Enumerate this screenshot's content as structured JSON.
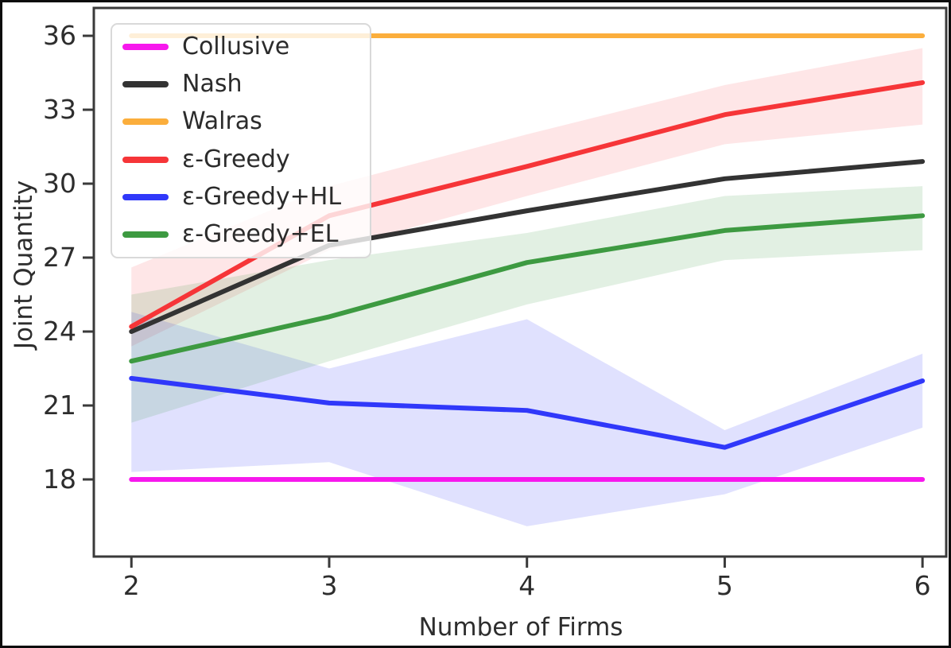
{
  "figure": {
    "background": "#ffffff",
    "frame_color": "#3a3a3a"
  },
  "chart_data": {
    "type": "line",
    "title": "",
    "xlabel": "Number of Firms",
    "ylabel": "Joint Quantity",
    "x": [
      2,
      3,
      4,
      5,
      6
    ],
    "xticks": [
      2,
      3,
      4,
      5,
      6
    ],
    "yticks": [
      18,
      21,
      24,
      27,
      30,
      33,
      36
    ],
    "xlim": [
      1.81,
      6.12
    ],
    "ylim": [
      14.87,
      37.13
    ],
    "grid": false,
    "legend_position": "upper-left",
    "series": [
      {
        "name": "Collusive",
        "color": "#f718ed",
        "values": [
          18,
          18,
          18,
          18,
          18
        ]
      },
      {
        "name": "Nash",
        "color": "#333333",
        "values": [
          24.0,
          27.5,
          28.9,
          30.2,
          30.9
        ]
      },
      {
        "name": "Walras",
        "color": "#fbae3c",
        "values": [
          36,
          36,
          36,
          36,
          36
        ]
      },
      {
        "name": "ε-Greedy",
        "color": "#f63538",
        "values": [
          24.2,
          28.7,
          30.7,
          32.8,
          34.1
        ],
        "band_upper": [
          26.6,
          29.9,
          32.0,
          34.0,
          35.5
        ],
        "band_lower": [
          23.4,
          27.3,
          29.5,
          31.6,
          32.4
        ],
        "band_opacity": 0.12
      },
      {
        "name": "ε-Greedy+HL",
        "color": "#3038fa",
        "values": [
          22.1,
          21.1,
          20.8,
          19.3,
          22.0
        ],
        "band_upper": [
          24.8,
          22.5,
          24.5,
          20.0,
          23.1
        ],
        "band_lower": [
          18.3,
          18.7,
          16.1,
          17.4,
          20.1
        ],
        "band_opacity": 0.15
      },
      {
        "name": "ε-Greedy+EL",
        "color": "#3d9a41",
        "values": [
          22.8,
          24.6,
          26.8,
          28.1,
          28.7
        ],
        "band_upper": [
          25.5,
          26.9,
          28.0,
          29.5,
          29.9
        ],
        "band_lower": [
          20.3,
          22.8,
          25.1,
          26.9,
          27.3
        ],
        "band_opacity": 0.15
      }
    ]
  }
}
